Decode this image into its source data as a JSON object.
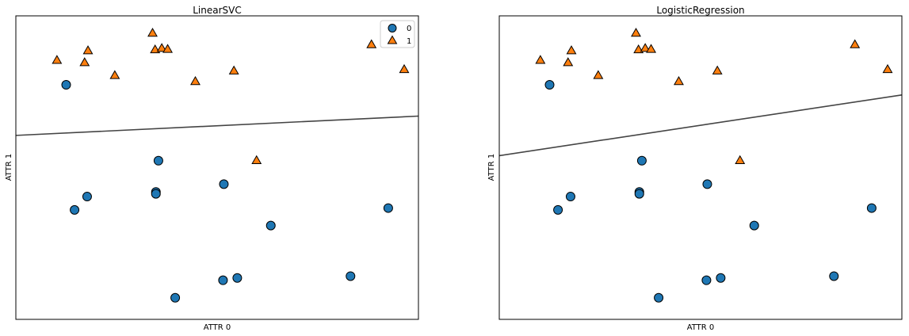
{
  "chart_data": [
    {
      "type": "scatter",
      "title": "LinearSVC",
      "xlabel": "ATTR 0",
      "ylabel": "ATTR 1",
      "xlim": [
        7.5,
        12.3
      ],
      "ylim": [
        -1.0,
        5.6
      ],
      "xticks": [],
      "yticks": [],
      "grid": false,
      "legend_position": "top-right",
      "series": [
        {
          "name": "0",
          "marker": "circle",
          "color": "#1f77b4",
          "points": [
            [
              8.1,
              4.1
            ],
            [
              9.2,
              2.45
            ],
            [
              8.35,
              1.67
            ],
            [
              8.2,
              1.38
            ],
            [
              9.17,
              1.77
            ],
            [
              9.17,
              1.73
            ],
            [
              9.98,
              1.94
            ],
            [
              10.54,
              1.04
            ],
            [
              11.94,
              1.42
            ],
            [
              9.4,
              -0.53
            ],
            [
              9.97,
              -0.15
            ],
            [
              10.14,
              -0.1
            ],
            [
              11.49,
              -0.06
            ]
          ]
        },
        {
          "name": "1",
          "marker": "triangle",
          "color": "#ff7f0e",
          "points": [
            [
              7.99,
              4.63
            ],
            [
              8.36,
              4.84
            ],
            [
              8.32,
              4.58
            ],
            [
              8.68,
              4.3
            ],
            [
              9.13,
              5.22
            ],
            [
              9.16,
              4.86
            ],
            [
              9.24,
              4.89
            ],
            [
              9.31,
              4.87
            ],
            [
              9.64,
              4.17
            ],
            [
              10.1,
              4.4
            ],
            [
              11.74,
              4.97
            ],
            [
              12.13,
              4.43
            ],
            [
              10.37,
              2.45
            ]
          ]
        }
      ],
      "decision_boundary": {
        "type": "line",
        "points": [
          [
            7.5,
            3.0
          ],
          [
            12.3,
            3.42
          ]
        ],
        "color": "#444444"
      }
    },
    {
      "type": "scatter",
      "title": "LogisticRegression",
      "xlabel": "ATTR 0",
      "ylabel": "ATTR 1",
      "xlim": [
        7.5,
        12.3
      ],
      "ylim": [
        -1.0,
        5.6
      ],
      "xticks": [],
      "yticks": [],
      "grid": false,
      "series": [
        {
          "name": "0",
          "marker": "circle",
          "color": "#1f77b4",
          "points": [
            [
              8.1,
              4.1
            ],
            [
              9.2,
              2.45
            ],
            [
              8.35,
              1.67
            ],
            [
              8.2,
              1.38
            ],
            [
              9.17,
              1.77
            ],
            [
              9.17,
              1.73
            ],
            [
              9.98,
              1.94
            ],
            [
              10.54,
              1.04
            ],
            [
              11.94,
              1.42
            ],
            [
              9.4,
              -0.53
            ],
            [
              9.97,
              -0.15
            ],
            [
              10.14,
              -0.1
            ],
            [
              11.49,
              -0.06
            ]
          ]
        },
        {
          "name": "1",
          "marker": "triangle",
          "color": "#ff7f0e",
          "points": [
            [
              7.99,
              4.63
            ],
            [
              8.36,
              4.84
            ],
            [
              8.32,
              4.58
            ],
            [
              8.68,
              4.3
            ],
            [
              9.13,
              5.22
            ],
            [
              9.16,
              4.86
            ],
            [
              9.24,
              4.89
            ],
            [
              9.31,
              4.87
            ],
            [
              9.64,
              4.17
            ],
            [
              10.1,
              4.4
            ],
            [
              11.74,
              4.97
            ],
            [
              12.13,
              4.43
            ],
            [
              10.37,
              2.45
            ]
          ]
        }
      ],
      "decision_boundary": {
        "type": "line",
        "points": [
          [
            7.5,
            2.56
          ],
          [
            12.3,
            3.88
          ]
        ],
        "color": "#444444"
      }
    }
  ]
}
